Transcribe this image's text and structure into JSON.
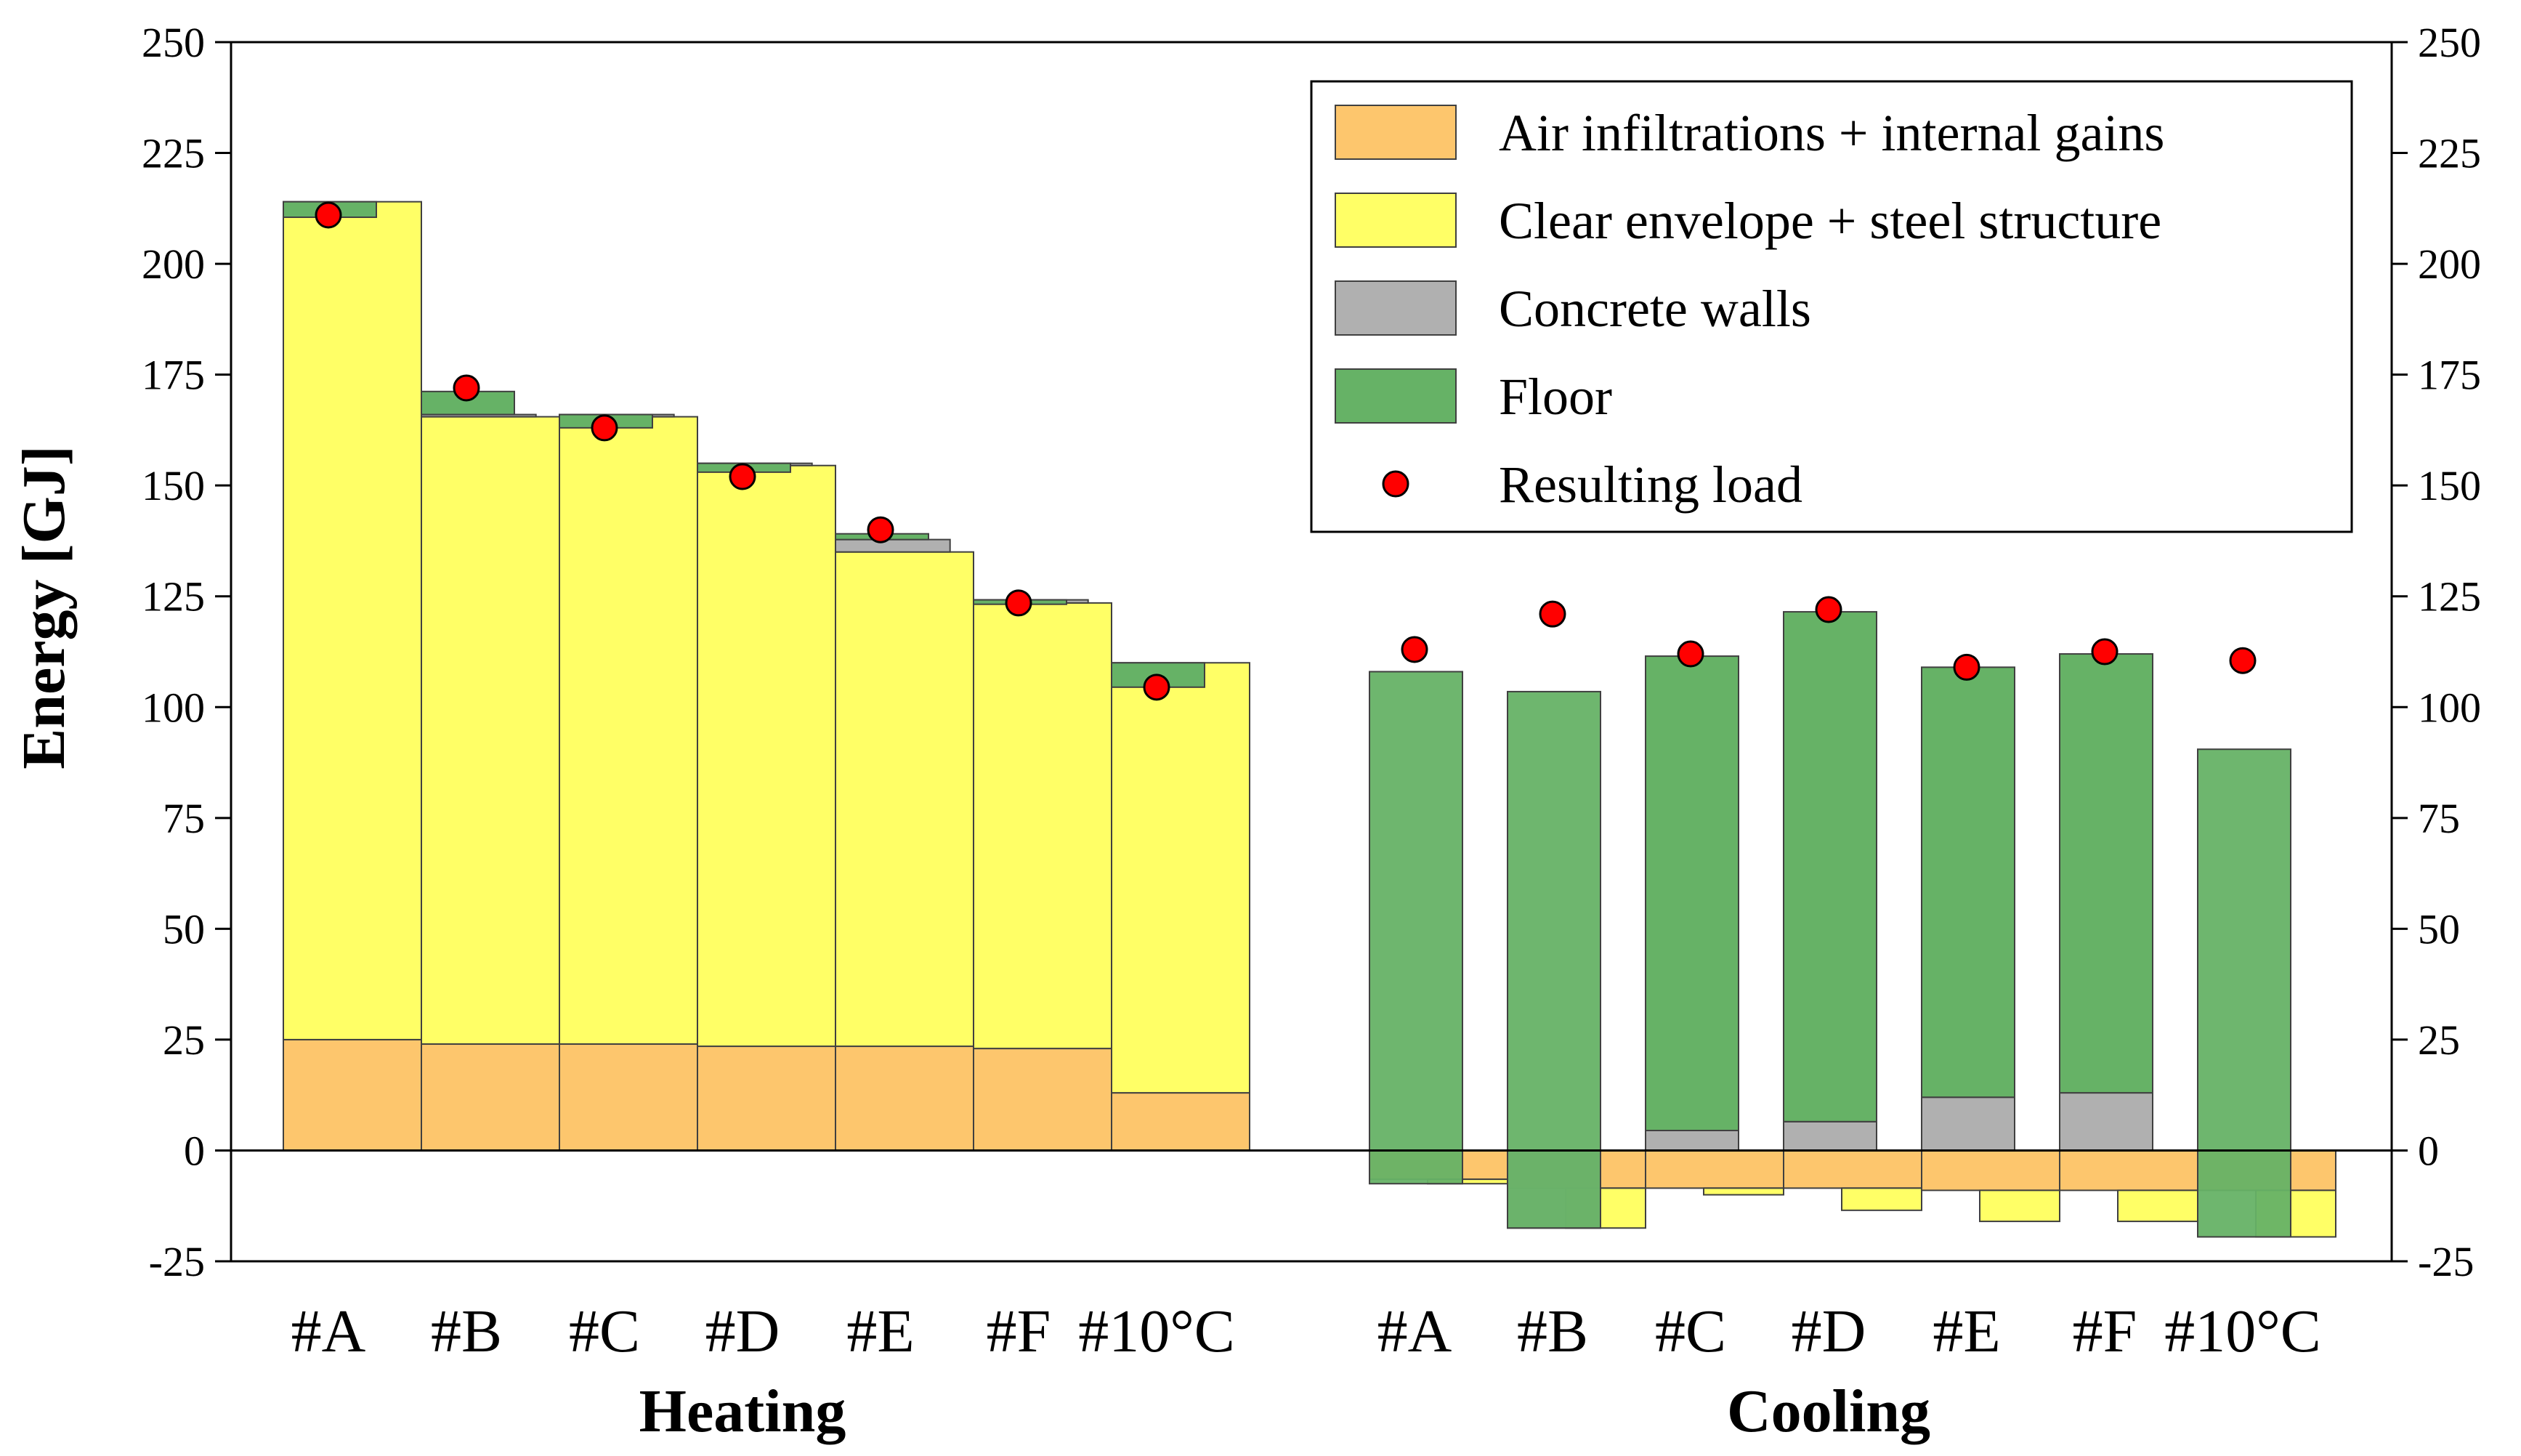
{
  "chart_data": {
    "type": "bar",
    "ylabel": "Energy [GJ]",
    "ylim": [
      -25,
      250
    ],
    "yticks": [
      -25,
      0,
      25,
      50,
      75,
      100,
      125,
      150,
      175,
      200,
      225,
      250
    ],
    "legend_position": "top-right",
    "groups": [
      {
        "name": "Heating",
        "categories": [
          "#A",
          "#B",
          "#C",
          "#D",
          "#E",
          "#F",
          "#10°C"
        ],
        "series": [
          {
            "name": "Air infiltrations + internal gains",
            "color": "#fdc66d",
            "values": [
              25,
              24,
              24,
              23.5,
              23.5,
              23,
              13
            ]
          },
          {
            "name": "Clear envelope + steel structure",
            "color": "#ffff66",
            "values": [
              189,
              141.5,
              141.5,
              131,
              111.5,
              100.5,
              97
            ]
          },
          {
            "name": "Concrete walls",
            "color": "#b0b0b0",
            "values": [
              0,
              0.5,
              0.5,
              0.5,
              2.8,
              0.7,
              0
            ]
          },
          {
            "name": "Floor",
            "color": "#66b266",
            "values": [
              -3.5,
              5.2,
              -3,
              -2,
              1.3,
              -1,
              -5.5
            ]
          }
        ],
        "resulting_load": [
          211,
          172,
          163,
          152,
          140,
          123.5,
          104.5
        ]
      },
      {
        "name": "Cooling",
        "categories": [
          "#A",
          "#B",
          "#C",
          "#D",
          "#E",
          "#F",
          "#10°C"
        ],
        "series": [
          {
            "name": "Air infiltrations + internal gains",
            "color": "#fdc66d",
            "values": [
              -6.5,
              -8.5,
              -8.5,
              -8.5,
              -9,
              -9,
              -9
            ]
          },
          {
            "name": "Clear envelope + steel structure",
            "color": "#ffff66",
            "values": [
              -1,
              -9,
              -1.5,
              -5,
              -7,
              -7,
              -10.5
            ]
          },
          {
            "name": "Concrete walls",
            "color": "#b0b0b0",
            "values": [
              0,
              -17.5,
              4.5,
              6.5,
              12,
              13,
              0
            ]
          },
          {
            "name": "Floor",
            "color": "#66b266",
            "values": [
              115.5,
              121,
              107,
              115,
              97,
              99,
              110
            ]
          }
        ],
        "resulting_load": [
          113,
          121,
          112,
          122,
          109,
          112.5,
          110.5
        ]
      }
    ],
    "legend": [
      {
        "label": "Air infiltrations + internal gains",
        "color": "#fdc66d",
        "kind": "bar"
      },
      {
        "label": "Clear envelope + steel structure",
        "color": "#ffff66",
        "kind": "bar"
      },
      {
        "label": "Concrete walls",
        "color": "#b0b0b0",
        "kind": "bar"
      },
      {
        "label": "Floor",
        "color": "#66b266",
        "kind": "bar"
      },
      {
        "label": "Resulting load",
        "color": "#ff0000",
        "kind": "marker"
      }
    ]
  }
}
